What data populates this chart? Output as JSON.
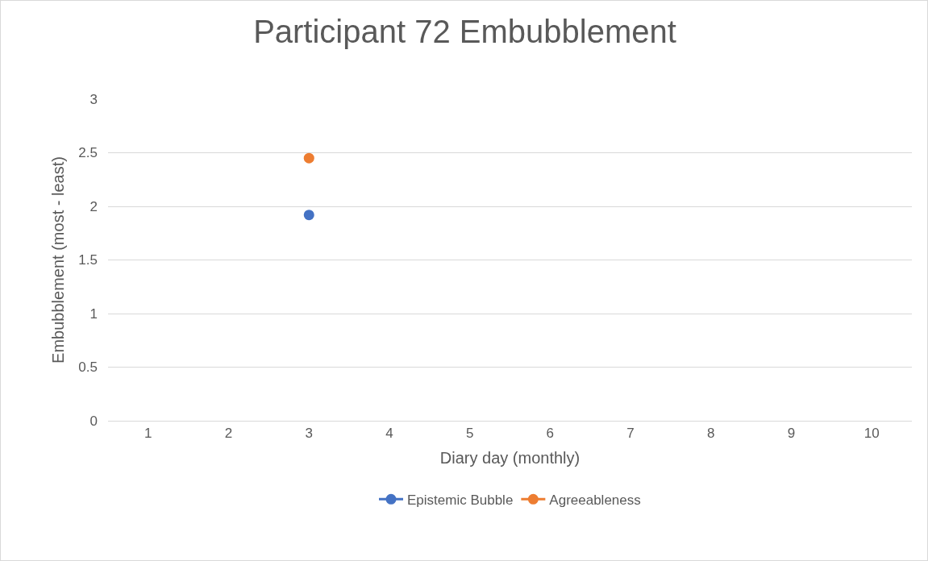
{
  "chart_data": {
    "type": "line",
    "title": "Participant 72 Embubblement",
    "xlabel": "Diary day (monthly)",
    "ylabel": "Embubblement (most - least)",
    "categories": [
      "1",
      "2",
      "3",
      "4",
      "5",
      "6",
      "7",
      "8",
      "9",
      "10"
    ],
    "series": [
      {
        "name": "Epistemic Bubble",
        "color": "#4472c4",
        "values": [
          null,
          null,
          1.92,
          null,
          null,
          null,
          null,
          null,
          null,
          null
        ]
      },
      {
        "name": "Agreeableness",
        "color": "#ed7d31",
        "values": [
          null,
          null,
          2.45,
          null,
          null,
          null,
          null,
          null,
          null,
          null
        ]
      }
    ],
    "ylim": [
      0,
      3
    ],
    "yticks": [
      0,
      0.5,
      1,
      1.5,
      2,
      2.5,
      3
    ],
    "grid": "y",
    "legend": "bottom",
    "marker": "circle",
    "line_style": "solid"
  }
}
